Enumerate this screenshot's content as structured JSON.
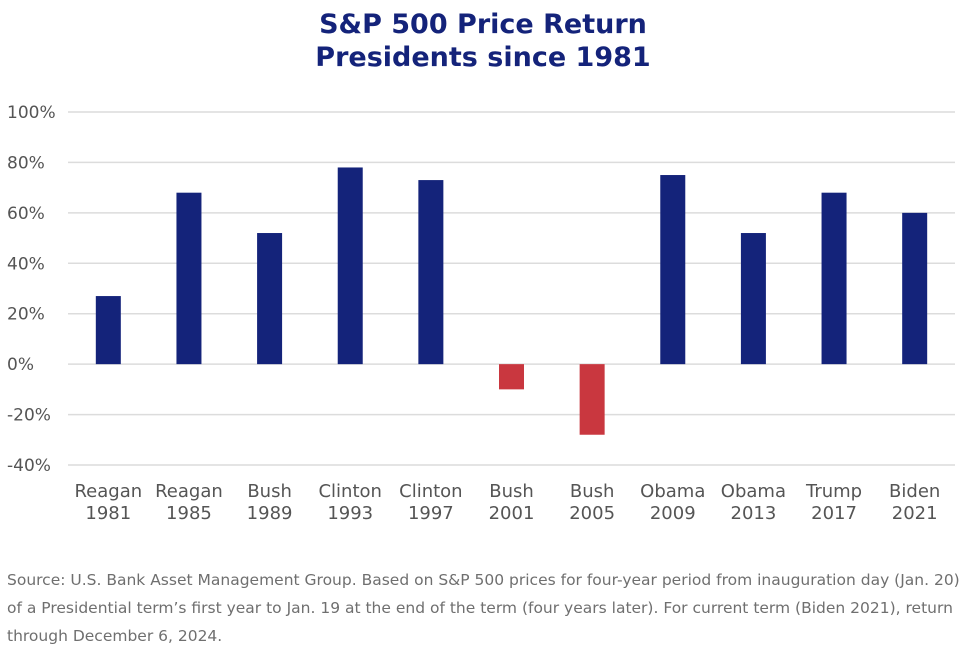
{
  "chart_data": {
    "type": "bar",
    "title": [
      "S&P 500 Price Return",
      "Presidents since 1981"
    ],
    "xlabel": "",
    "ylabel": "",
    "categories": [
      [
        "Reagan",
        "1981"
      ],
      [
        "Reagan",
        "1985"
      ],
      [
        "Bush",
        "1989"
      ],
      [
        "Clinton",
        "1993"
      ],
      [
        "Clinton",
        "1997"
      ],
      [
        "Bush",
        "2001"
      ],
      [
        "Bush",
        "2005"
      ],
      [
        "Obama",
        "2009"
      ],
      [
        "Obama",
        "2013"
      ],
      [
        "Trump",
        "2017"
      ],
      [
        "Biden",
        "2021"
      ]
    ],
    "values": [
      27,
      68,
      52,
      78,
      73,
      -10,
      -28,
      75,
      52,
      68,
      60
    ],
    "ylim": [
      -40,
      100
    ],
    "yticks": [
      100,
      80,
      60,
      40,
      20,
      0,
      -20,
      -40
    ],
    "ytick_labels": [
      "100%",
      "80%",
      "60%",
      "40%",
      "20%",
      "0%",
      "-20%",
      "-40%"
    ],
    "grid": true,
    "legend": "none",
    "colors": {
      "positive": "#14237a",
      "negative": "#c9373f",
      "grid": "#dcdcdc",
      "axis_text": "#555555"
    }
  },
  "source_note": "Source: U.S. Bank Asset Management Group. Based on S&P 500 prices for four-year period from inauguration day (Jan. 20) of a Presidential term’s first year to Jan. 19 at the end of the term (four years later). For current term (Biden 2021), return through December 6, 2024."
}
